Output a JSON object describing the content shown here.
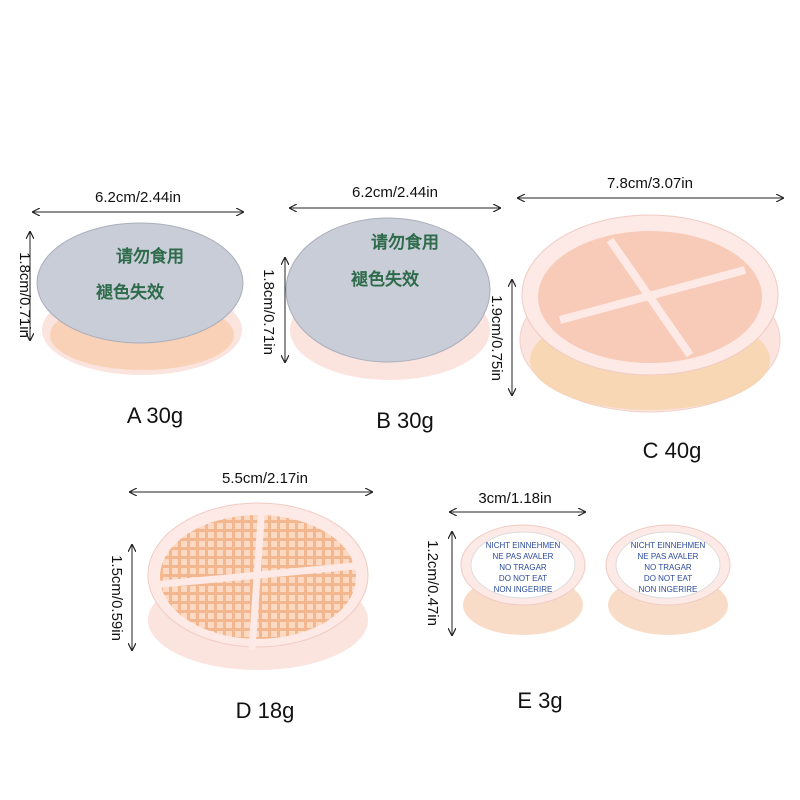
{
  "colors": {
    "gel": "#f6c9a6",
    "container": "#fbe3de",
    "foil": "#c9cdd8",
    "warning_text": "#2a4a9c",
    "lid_text": "#2e6b4a"
  },
  "products": [
    {
      "label": "A 30g",
      "width": "6.2cm/2.44in",
      "height": "1.8cm/0.71in",
      "lid_lines": [
        "请勿食用",
        "褪色失效"
      ]
    },
    {
      "label": "B 30g",
      "width": "6.2cm/2.44in",
      "height": "1.8cm/0.71in",
      "lid_lines": [
        "请勿食用",
        "褪色失效"
      ]
    },
    {
      "label": "C 40g",
      "width": "7.8cm/3.07in",
      "height": "1.9cm/0.75in"
    },
    {
      "label": "D 18g",
      "width": "5.5cm/2.17in",
      "height": "1.5cm/0.59in"
    },
    {
      "label": "E 3g",
      "width": "3cm/1.18in",
      "height": "1.2cm/0.47in",
      "lid_lines": [
        "NICHT EINNEHMEN",
        "NE PAS AVALER",
        "NO TRAGAR",
        "DO NOT EAT",
        "NON INGERIRE"
      ]
    }
  ]
}
